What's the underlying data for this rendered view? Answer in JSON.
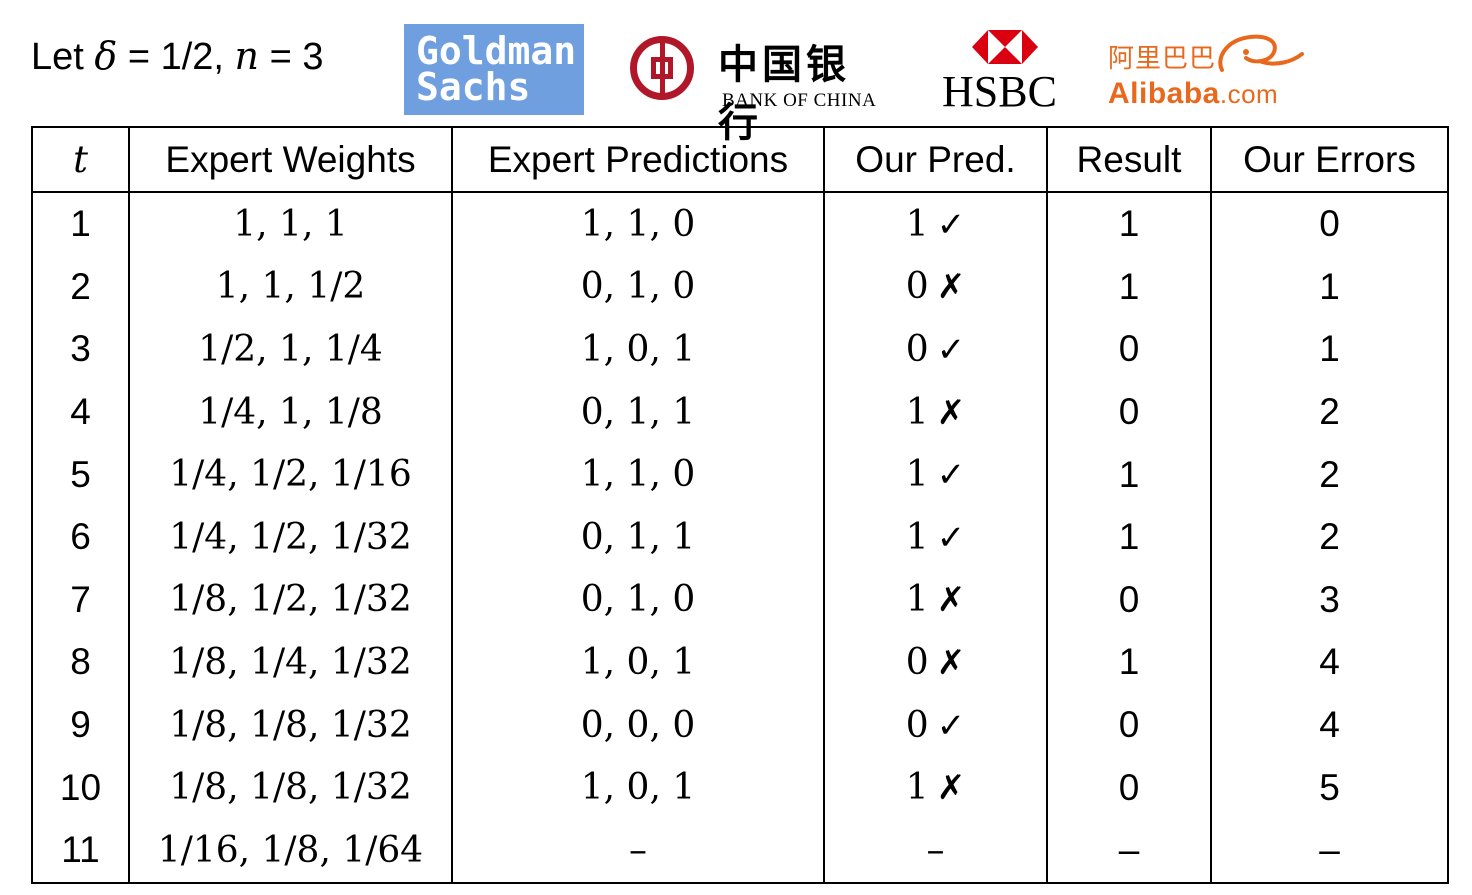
{
  "caption": {
    "prefix": "Let ",
    "delta_symbol": "δ",
    "delta_eq": " = 1/2, ",
    "n_symbol": "n",
    "n_eq": " = 3"
  },
  "logos": [
    {
      "name": "goldman-sachs",
      "lines": [
        "Goldman",
        "Sachs"
      ],
      "color": "#6f9fde"
    },
    {
      "name": "bank-of-china",
      "cn": "中国银行",
      "en": "BANK OF CHINA",
      "color": "#b0182a"
    },
    {
      "name": "hsbc",
      "text": "HSBC",
      "color": "#db0011"
    },
    {
      "name": "alibaba",
      "cn": "阿里巴巴",
      "en": "Alibaba",
      "com": ".com",
      "color": "#e8691d"
    }
  ],
  "table": {
    "headers": [
      "t",
      "Expert Weights",
      "Expert Predictions",
      "Our Pred.",
      "Result",
      "Our Errors"
    ],
    "rows": [
      {
        "t": "1",
        "weights": "1, 1, 1",
        "preds": "1, 1, 0",
        "our": "1",
        "mark": "✓",
        "result": "1",
        "errors": "0"
      },
      {
        "t": "2",
        "weights": "1, 1, 1/2",
        "preds": "0, 1, 0",
        "our": "0",
        "mark": "✗",
        "result": "1",
        "errors": "1"
      },
      {
        "t": "3",
        "weights": "1/2, 1, 1/4",
        "preds": "1, 0, 1",
        "our": "0",
        "mark": "✓",
        "result": "0",
        "errors": "1"
      },
      {
        "t": "4",
        "weights": "1/4, 1, 1/8",
        "preds": "0, 1, 1",
        "our": "1",
        "mark": "✗",
        "result": "0",
        "errors": "2"
      },
      {
        "t": "5",
        "weights": "1/4, 1/2, 1/16",
        "preds": "1, 1, 0",
        "our": "1",
        "mark": "✓",
        "result": "1",
        "errors": "2"
      },
      {
        "t": "6",
        "weights": "1/4, 1/2, 1/32",
        "preds": "0, 1, 1",
        "our": "1",
        "mark": "✓",
        "result": "1",
        "errors": "2"
      },
      {
        "t": "7",
        "weights": "1/8, 1/2, 1/32",
        "preds": "0, 1, 0",
        "our": "1",
        "mark": "✗",
        "result": "0",
        "errors": "3"
      },
      {
        "t": "8",
        "weights": "1/8, 1/4, 1/32",
        "preds": "1, 0, 1",
        "our": "0",
        "mark": "✗",
        "result": "1",
        "errors": "4"
      },
      {
        "t": "9",
        "weights": "1/8, 1/8, 1/32",
        "preds": "0, 0, 0",
        "our": "0",
        "mark": "✓",
        "result": "0",
        "errors": "4"
      },
      {
        "t": "10",
        "weights": "1/8, 1/8, 1/32",
        "preds": "1, 0, 1",
        "our": "1",
        "mark": "✗",
        "result": "0",
        "errors": "5"
      },
      {
        "t": "11",
        "weights": "1/16, 1/8, 1/64",
        "preds": "–",
        "our": "–",
        "mark": "",
        "result": "–",
        "errors": "–"
      }
    ]
  }
}
